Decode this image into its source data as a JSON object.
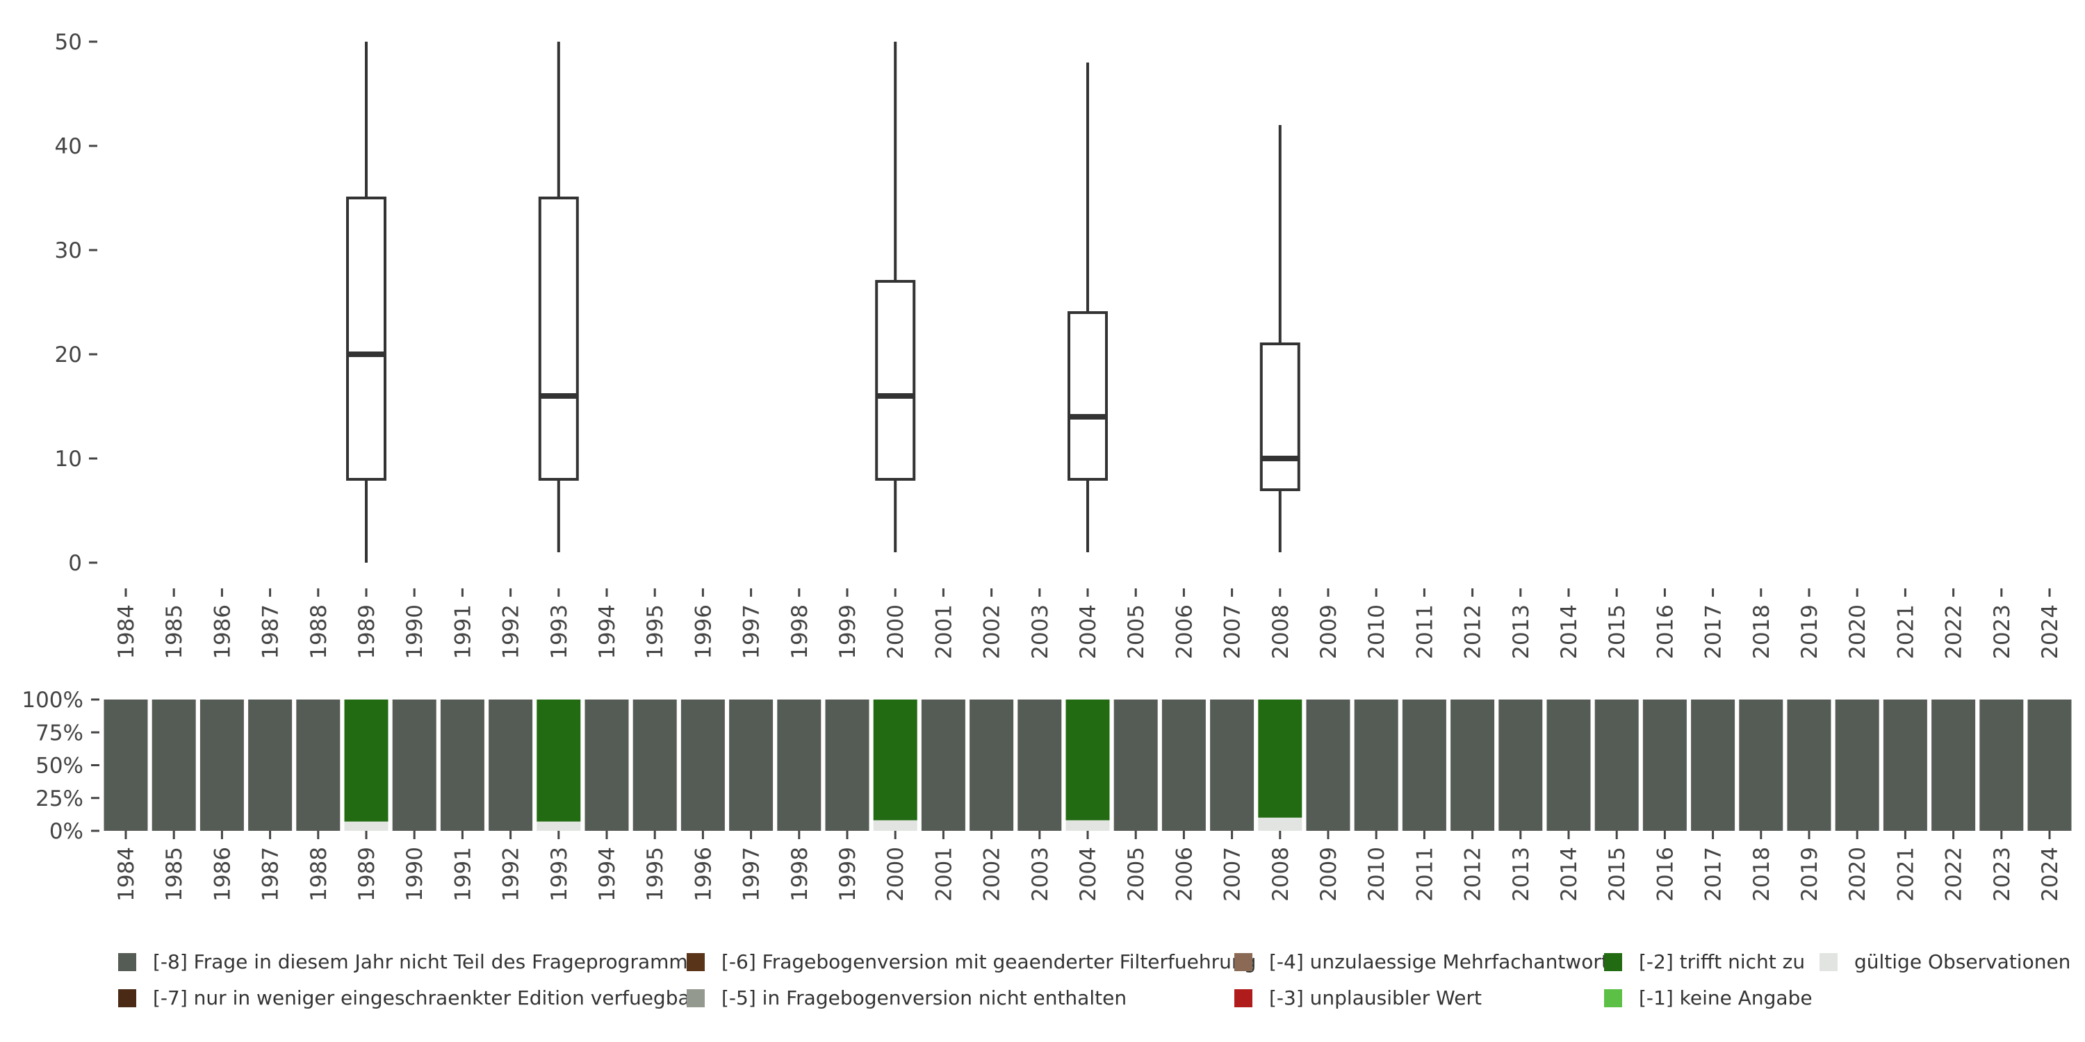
{
  "chart_data": [
    {
      "type": "boxplot",
      "years": [
        "1984",
        "1985",
        "1986",
        "1987",
        "1988",
        "1989",
        "1990",
        "1991",
        "1992",
        "1993",
        "1994",
        "1995",
        "1996",
        "1997",
        "1998",
        "1999",
        "2000",
        "2001",
        "2002",
        "2003",
        "2004",
        "2005",
        "2006",
        "2007",
        "2008",
        "2009",
        "2010",
        "2011",
        "2012",
        "2013",
        "2014",
        "2015",
        "2016",
        "2017",
        "2018",
        "2019",
        "2020",
        "2021",
        "2022",
        "2023",
        "2024"
      ],
      "yticks": [
        0,
        10,
        20,
        30,
        40,
        50
      ],
      "ylim": [
        0,
        50
      ],
      "grid": false,
      "boxes": [
        {
          "year": "1989",
          "min": 0,
          "q1": 8,
          "median": 20,
          "q3": 35,
          "max": 50
        },
        {
          "year": "1993",
          "min": 1,
          "q1": 8,
          "median": 16,
          "q3": 35,
          "max": 50
        },
        {
          "year": "2000",
          "min": 1,
          "q1": 8,
          "median": 16,
          "q3": 27,
          "max": 50
        },
        {
          "year": "2004",
          "min": 1,
          "q1": 8,
          "median": 14,
          "q3": 24,
          "max": 48
        },
        {
          "year": "2008",
          "min": 1,
          "q1": 7,
          "median": 10,
          "q3": 21,
          "max": 42
        }
      ]
    },
    {
      "type": "stacked-bar",
      "years": [
        "1984",
        "1985",
        "1986",
        "1987",
        "1988",
        "1989",
        "1990",
        "1991",
        "1992",
        "1993",
        "1994",
        "1995",
        "1996",
        "1997",
        "1998",
        "1999",
        "2000",
        "2001",
        "2002",
        "2003",
        "2004",
        "2005",
        "2006",
        "2007",
        "2008",
        "2009",
        "2010",
        "2011",
        "2012",
        "2013",
        "2014",
        "2015",
        "2016",
        "2017",
        "2018",
        "2019",
        "2020",
        "2021",
        "2022",
        "2023",
        "2024"
      ],
      "yticks": [
        "0%",
        "25%",
        "50%",
        "75%",
        "100%"
      ],
      "ylim": [
        0,
        100
      ],
      "valid_share": {
        "1989": 7,
        "1993": 7,
        "2000": 8,
        "2004": 8,
        "2008": 10
      },
      "colors": {
        "not_in_program": "#555b55",
        "not_applicable": "#226b12",
        "valid": "#e1e4e1"
      }
    }
  ],
  "legend": [
    {
      "label": "[-8] Frage in diesem Jahr nicht Teil des Frageprogramms",
      "color": "#555b55"
    },
    {
      "label": "[-7] nur in weniger eingeschraenkter Edition verfuegbar",
      "color": "#4a2a14"
    },
    {
      "label": "[-6] Fragebogenversion mit geaenderter Filterfuehrung",
      "color": "#5a3418"
    },
    {
      "label": "[-5] in Fragebogenversion nicht enthalten",
      "color": "#93998f"
    },
    {
      "label": "[-4] unzulaessige Mehrfachantwort",
      "color": "#8a6a55"
    },
    {
      "label": "[-3] unplausibler Wert",
      "color": "#b01c1c"
    },
    {
      "label": "[-2] trifft nicht zu",
      "color": "#226b12"
    },
    {
      "label": "[-1] keine Angabe",
      "color": "#5cc046"
    },
    {
      "label": "gültige Observationen",
      "color": "#e1e4e1"
    }
  ]
}
